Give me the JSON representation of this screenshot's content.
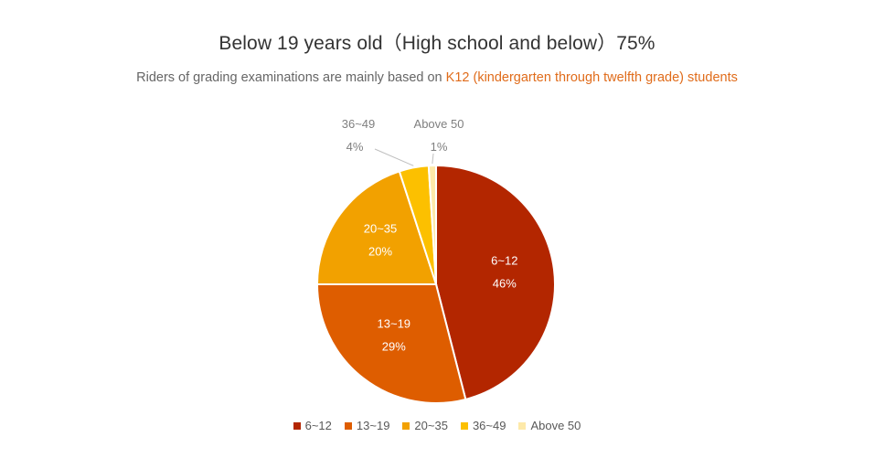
{
  "title": "Below 19 years old（High school and below）75%",
  "subtitle": {
    "prefix": "Riders of grading examinations are mainly based on ",
    "highlight": "K12 (kindergarten through twelfth grade) students"
  },
  "chart_data": {
    "type": "pie",
    "title": "Below 19 years old（High school and below）75%",
    "categories": [
      "6~12",
      "13~19",
      "20~35",
      "36~49",
      "Above 50"
    ],
    "values": [
      46,
      29,
      20,
      4,
      1
    ],
    "labels": [
      "46%",
      "29%",
      "20%",
      "4%",
      "1%"
    ],
    "colors": [
      "#b32600",
      "#de5d00",
      "#f2a100",
      "#fcc000",
      "#fde9a9"
    ],
    "legend_position": "bottom"
  }
}
